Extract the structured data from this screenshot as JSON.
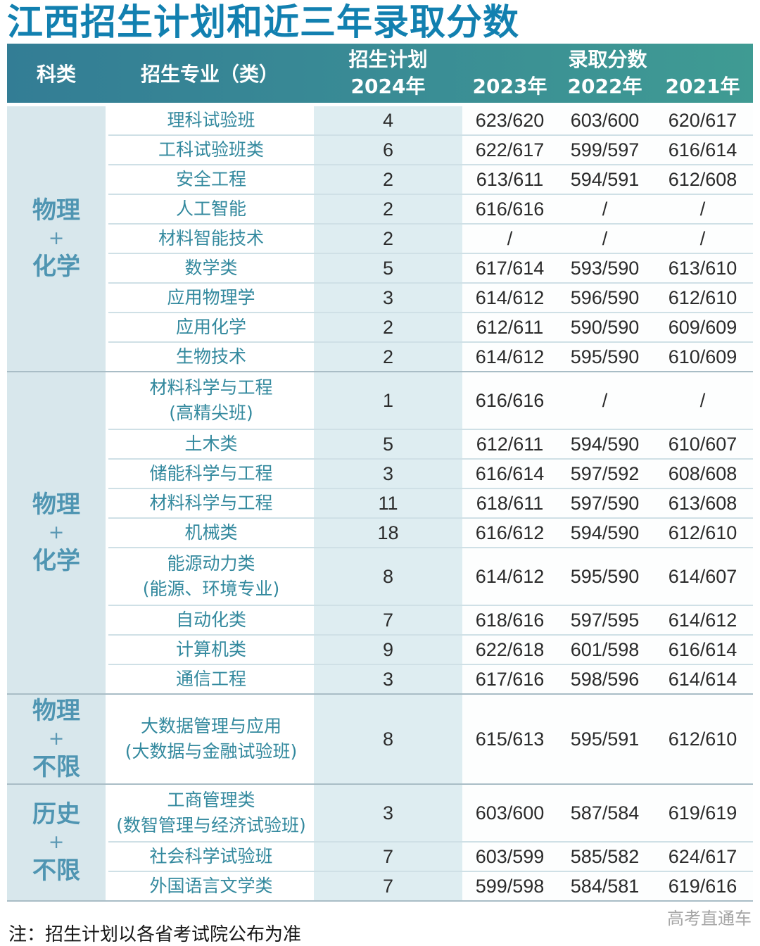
{
  "chart_data": {
    "type": "table",
    "title": "江西招生计划和近三年录取分数",
    "header": {
      "category": "科类",
      "major": "招生专业（类）",
      "plan_line1": "招生计划",
      "plan_year": "2024年",
      "score_title": "录取分数",
      "years": [
        "2023年",
        "2022年",
        "2021年"
      ]
    },
    "groups": [
      {
        "category_lines": [
          "物理",
          "+",
          "化学"
        ],
        "rows": [
          {
            "major": [
              "理科试验班"
            ],
            "plan": "4",
            "scores": [
              "623/620",
              "603/600",
              "620/617"
            ]
          },
          {
            "major": [
              "工科试验班类"
            ],
            "plan": "6",
            "scores": [
              "622/617",
              "599/597",
              "616/614"
            ]
          },
          {
            "major": [
              "安全工程"
            ],
            "plan": "2",
            "scores": [
              "613/611",
              "594/591",
              "612/608"
            ]
          },
          {
            "major": [
              "人工智能"
            ],
            "plan": "2",
            "scores": [
              "616/616",
              "/",
              "/"
            ]
          },
          {
            "major": [
              "材料智能技术"
            ],
            "plan": "2",
            "scores": [
              "/",
              "/",
              "/"
            ]
          },
          {
            "major": [
              "数学类"
            ],
            "plan": "5",
            "scores": [
              "617/614",
              "593/590",
              "613/610"
            ]
          },
          {
            "major": [
              "应用物理学"
            ],
            "plan": "3",
            "scores": [
              "614/612",
              "596/590",
              "612/610"
            ]
          },
          {
            "major": [
              "应用化学"
            ],
            "plan": "2",
            "scores": [
              "612/611",
              "590/590",
              "609/609"
            ]
          },
          {
            "major": [
              "生物技术"
            ],
            "plan": "2",
            "scores": [
              "614/612",
              "595/590",
              "610/609"
            ]
          }
        ]
      },
      {
        "category_lines": [
          "物理",
          "+",
          "化学"
        ],
        "rows": [
          {
            "major": [
              "材料科学与工程",
              "(高精尖班)"
            ],
            "plan": "1",
            "scores": [
              "616/616",
              "/",
              "/"
            ]
          },
          {
            "major": [
              "土木类"
            ],
            "plan": "5",
            "scores": [
              "612/611",
              "594/590",
              "610/607"
            ]
          },
          {
            "major": [
              "储能科学与工程"
            ],
            "plan": "3",
            "scores": [
              "616/614",
              "597/592",
              "608/608"
            ]
          },
          {
            "major": [
              "材料科学与工程"
            ],
            "plan": "11",
            "scores": [
              "618/611",
              "597/590",
              "613/608"
            ]
          },
          {
            "major": [
              "机械类"
            ],
            "plan": "18",
            "scores": [
              "616/612",
              "594/590",
              "612/610"
            ]
          },
          {
            "major": [
              "能源动力类",
              "(能源、环境专业)"
            ],
            "plan": "8",
            "scores": [
              "614/612",
              "595/590",
              "614/607"
            ]
          },
          {
            "major": [
              "自动化类"
            ],
            "plan": "7",
            "scores": [
              "618/616",
              "597/595",
              "614/612"
            ]
          },
          {
            "major": [
              "计算机类"
            ],
            "plan": "9",
            "scores": [
              "622/618",
              "601/598",
              "616/614"
            ]
          },
          {
            "major": [
              "通信工程"
            ],
            "plan": "3",
            "scores": [
              "617/616",
              "598/596",
              "614/614"
            ]
          }
        ]
      },
      {
        "category_lines": [
          "物理",
          "+",
          "不限"
        ],
        "rows": [
          {
            "major": [
              "大数据管理与应用",
              "(大数据与金融试验班)"
            ],
            "plan": "8",
            "scores": [
              "615/613",
              "595/591",
              "612/610"
            ]
          }
        ]
      },
      {
        "category_lines": [
          "历史",
          "+",
          "不限"
        ],
        "rows": [
          {
            "major": [
              "工商管理类",
              "(数智管理与经济试验班)"
            ],
            "plan": "3",
            "scores": [
              "603/600",
              "587/584",
              "619/619"
            ]
          },
          {
            "major": [
              "社会科学试验班"
            ],
            "plan": "7",
            "scores": [
              "603/599",
              "585/582",
              "624/617"
            ]
          },
          {
            "major": [
              "外国语言文学类"
            ],
            "plan": "7",
            "scores": [
              "599/598",
              "584/581",
              "619/616"
            ]
          }
        ]
      }
    ],
    "footer": {
      "note": "注：招生计划以各省考试院公布为准",
      "watermark": "高考直通车"
    },
    "colors": {
      "title_text": "#1280b0",
      "header_gradient_left": "#337d95",
      "header_gradient_right": "#3f9b93",
      "header_text": "#ffffff",
      "category_bg": "#d8e7ec",
      "category_text": "#4f95b2",
      "major_text": "#33899e",
      "plan_col_bg": "#deedf1",
      "score_text": "#2b2b2b",
      "row_line": "#cfe0e6",
      "group_line": "#a9bdc6",
      "watermark_text": "#a6a6a6"
    }
  }
}
